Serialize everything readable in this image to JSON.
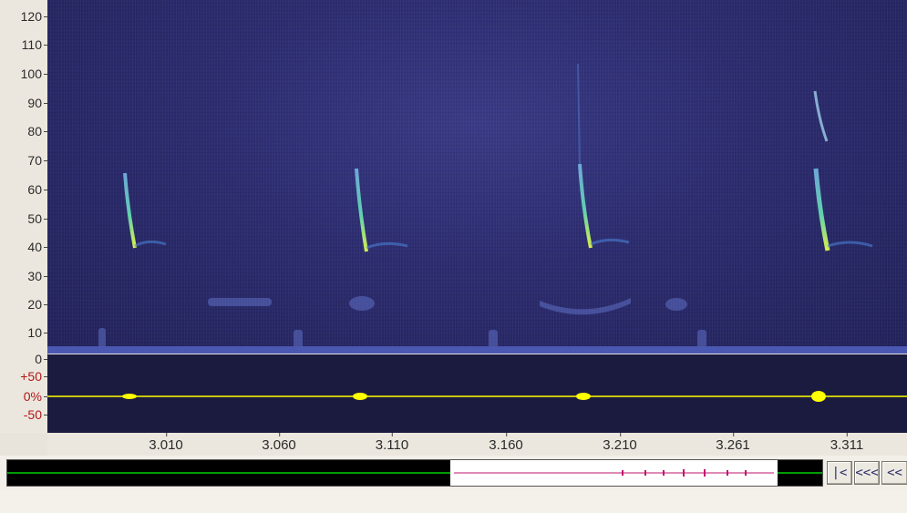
{
  "spectrogram": {
    "y_ticks": [
      "120",
      "110",
      "100",
      "90",
      "80",
      "70",
      "60",
      "50",
      "40",
      "30",
      "20",
      "10",
      "0"
    ]
  },
  "waveform": {
    "y_ticks": [
      "+50",
      "0%",
      "-50"
    ]
  },
  "time_axis": {
    "x_ticks": [
      "3.010",
      "3.060",
      "3.110",
      "3.160",
      "3.210",
      "3.261",
      "3.311"
    ]
  },
  "navigation": {
    "buttons": [
      "|<",
      "<<<",
      "<<"
    ]
  },
  "colors": {
    "spectrogram_background": "#2c2c70",
    "call_highlight": "#c8e84a",
    "waveform_trace": "#ffff00",
    "overview_trace_active": "#00d000",
    "overview_window": "#ffffff",
    "overview_trace_window": "#c0146e",
    "axis_red": "#b01818"
  }
}
